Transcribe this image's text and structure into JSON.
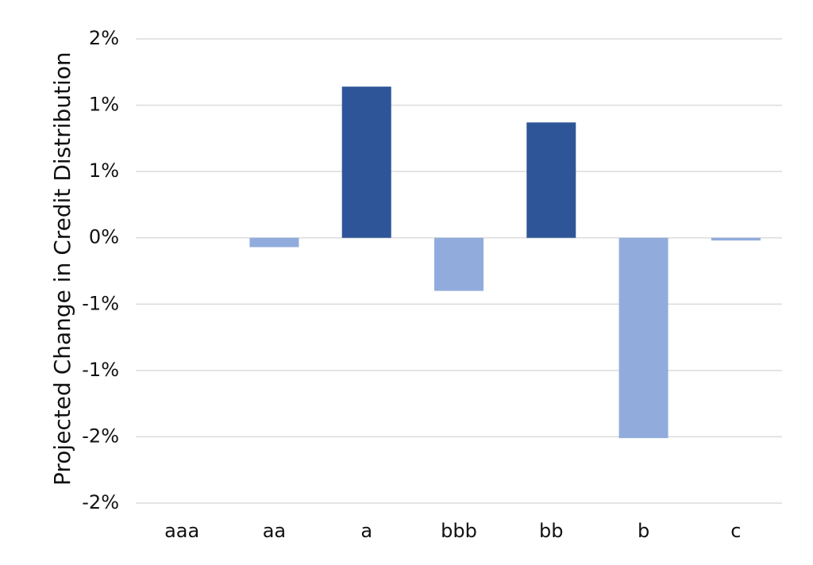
{
  "chart_data": {
    "type": "bar",
    "y_label": "Projected Change in Credit Distribution",
    "categories": [
      "aaa",
      "aa",
      "a",
      "bbb",
      "bb",
      "b",
      "c"
    ],
    "values": [
      0,
      -0.07,
      1.14,
      -0.4,
      0.87,
      -1.51,
      -0.02
    ],
    "colors": [
      "#2e5597",
      "#91acdc",
      "#2e5597",
      "#91acdc",
      "#2e5597",
      "#91acdc",
      "#91acdc"
    ],
    "ylim": [
      -2.0,
      1.5
    ],
    "yticks": [
      {
        "value": 1.5,
        "label": "2%"
      },
      {
        "value": 1.0,
        "label": "1%"
      },
      {
        "value": 0.5,
        "label": "1%"
      },
      {
        "value": 0,
        "label": "0%"
      },
      {
        "value": -0.5,
        "label": "-1%"
      },
      {
        "value": -1.0,
        "label": "-1%"
      },
      {
        "value": -1.5,
        "label": "-2%"
      },
      {
        "value": -2.0,
        "label": "-2%"
      }
    ],
    "grid": true
  }
}
